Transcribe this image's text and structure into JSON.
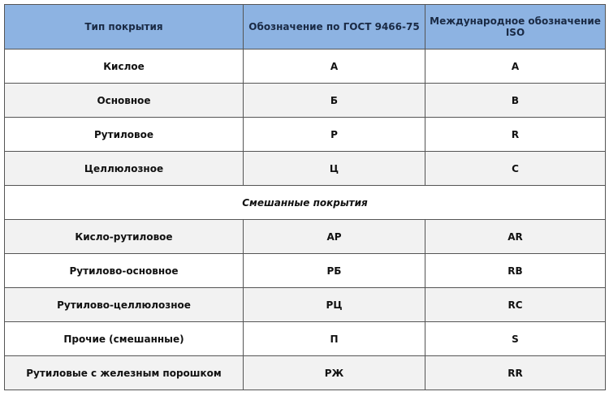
{
  "header": [
    "Тип покрытия",
    "Обозначение по ГОСТ 9466-75",
    "Международное обозначение ISO"
  ],
  "rows": [
    [
      "Кислое",
      "А",
      "A"
    ],
    [
      "Основное",
      "Б",
      "B"
    ],
    [
      "Рутиловое",
      "Р",
      "R"
    ],
    [
      "Целлюлозное",
      "Ц",
      "C"
    ]
  ],
  "section_label": "Смешанные покрытия",
  "mixed_rows": [
    [
      "Кисло-рутиловое",
      "АР",
      "AR"
    ],
    [
      "Рутилово-основное",
      "РБ",
      "RB"
    ],
    [
      "Рутилово-целлюлозное",
      "РЦ",
      "RC"
    ],
    [
      "Прочие (смешанные)",
      "П",
      "S"
    ],
    [
      "Рутиловые с железным порошком",
      "РЖ",
      "RR"
    ]
  ],
  "colors": {
    "header_bg": "#8db3e2",
    "alt_row_bg": "#f2f2f2"
  }
}
